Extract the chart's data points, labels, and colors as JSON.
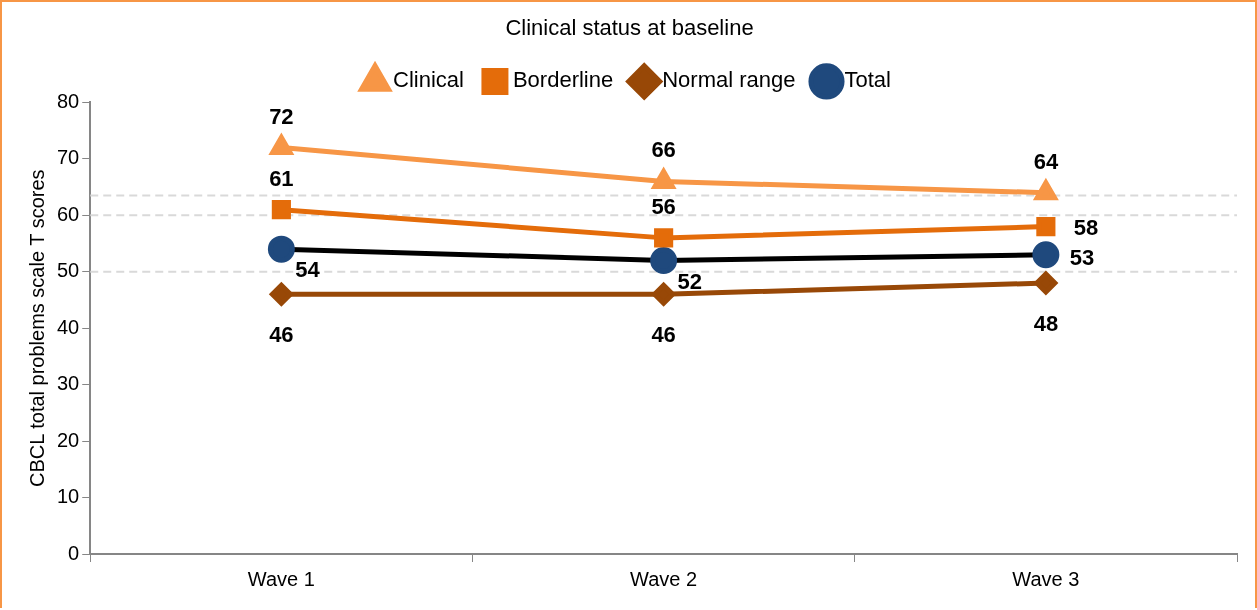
{
  "chart_data": {
    "type": "line",
    "legend_title": "Clinical status at baseline",
    "ylabel": "CBCL total problems scale T scores",
    "categories": [
      "Wave 1",
      "Wave 2",
      "Wave 3"
    ],
    "series": [
      {
        "name": "Clinical",
        "color": "#f79646",
        "marker": "triangle",
        "values": [
          72,
          66,
          64
        ]
      },
      {
        "name": "Borderline",
        "color": "#e46c0a",
        "marker": "square",
        "values": [
          61,
          56,
          58
        ]
      },
      {
        "name": "Normal range",
        "color": "#984807",
        "marker": "diamond",
        "values": [
          46,
          46,
          48
        ]
      },
      {
        "name": "Total",
        "color": "#000000",
        "colors": [
          "#1f497d",
          "#1f497d",
          "#1f497d"
        ],
        "marker": "circle",
        "values": [
          54,
          52,
          53
        ]
      }
    ],
    "ylim": [
      0,
      80
    ],
    "yticks": [
      0,
      10,
      20,
      30,
      40,
      50,
      60,
      70,
      80
    ],
    "ref_lines": [
      {
        "axis": "y",
        "value": 63.5,
        "color": "#d9d9d9",
        "line_style": "dashed"
      },
      {
        "axis": "y",
        "value": 60,
        "color": "#d9d9d9",
        "line_style": "dashed"
      },
      {
        "axis": "y",
        "value": 50,
        "color": "#d9d9d9",
        "line_style": "dashed"
      }
    ],
    "grid": false,
    "legend": "top",
    "data_labels": true,
    "line_style": "solid"
  }
}
